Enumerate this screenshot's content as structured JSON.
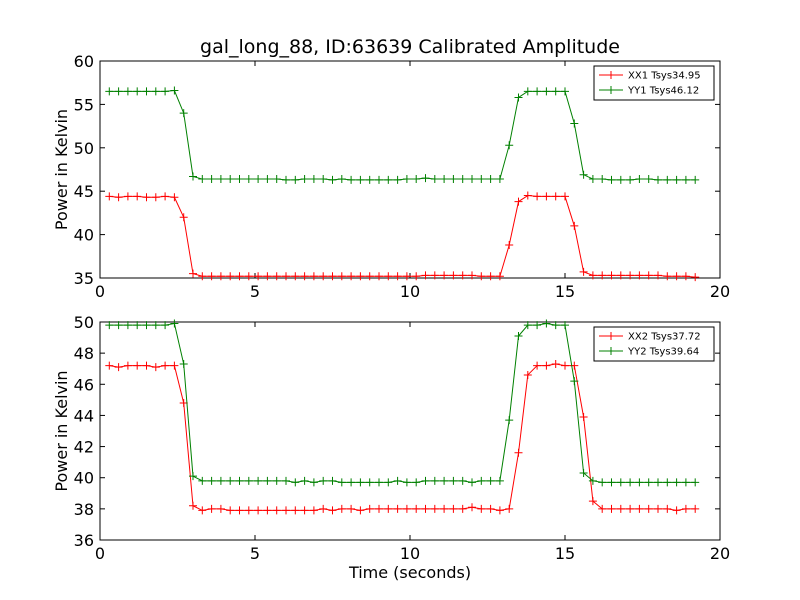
{
  "title": "gal_long_88, ID:63639 Calibrated Amplitude",
  "chart_data": [
    {
      "type": "line",
      "xlabel": "",
      "ylabel": "Power in Kelvin",
      "xlim": [
        0,
        20
      ],
      "ylim": [
        35,
        60
      ],
      "xticks": [
        0,
        5,
        10,
        15,
        20
      ],
      "yticks": [
        35,
        40,
        45,
        50,
        55,
        60
      ],
      "grid": false,
      "legend_position": "top-right",
      "x": [
        0.3,
        0.6,
        0.9,
        1.2,
        1.5,
        1.8,
        2.1,
        2.4,
        2.7,
        3.0,
        3.3,
        3.6,
        3.9,
        4.2,
        4.5,
        4.8,
        5.1,
        5.4,
        5.7,
        6.0,
        6.3,
        6.6,
        6.9,
        7.2,
        7.5,
        7.8,
        8.1,
        8.4,
        8.7,
        9.0,
        9.3,
        9.6,
        9.9,
        10.2,
        10.5,
        10.8,
        11.1,
        11.4,
        11.7,
        12.0,
        12.3,
        12.6,
        12.9,
        13.2,
        13.5,
        13.8,
        14.1,
        14.4,
        14.7,
        15.0,
        15.3,
        15.6,
        15.9,
        16.2,
        16.5,
        16.8,
        17.1,
        17.4,
        17.7,
        18.0,
        18.3,
        18.6,
        18.9,
        19.2
      ],
      "series": [
        {
          "name": "XX1 Tsys34.95",
          "color": "#ff0000",
          "values": [
            44.4,
            44.3,
            44.4,
            44.4,
            44.3,
            44.3,
            44.4,
            44.3,
            42.0,
            35.5,
            35.2,
            35.2,
            35.2,
            35.2,
            35.2,
            35.2,
            35.2,
            35.2,
            35.2,
            35.2,
            35.2,
            35.2,
            35.2,
            35.2,
            35.2,
            35.2,
            35.2,
            35.2,
            35.2,
            35.2,
            35.2,
            35.2,
            35.2,
            35.2,
            35.3,
            35.3,
            35.3,
            35.3,
            35.3,
            35.3,
            35.2,
            35.2,
            35.2,
            38.8,
            43.8,
            44.5,
            44.4,
            44.4,
            44.4,
            44.4,
            41.0,
            35.7,
            35.3,
            35.3,
            35.3,
            35.3,
            35.3,
            35.3,
            35.3,
            35.3,
            35.2,
            35.2,
            35.2,
            35.1
          ]
        },
        {
          "name": "YY1 Tsys46.12",
          "color": "#008000",
          "values": [
            56.5,
            56.5,
            56.5,
            56.5,
            56.5,
            56.5,
            56.5,
            56.6,
            54.0,
            46.7,
            46.4,
            46.4,
            46.4,
            46.4,
            46.4,
            46.4,
            46.4,
            46.4,
            46.4,
            46.3,
            46.3,
            46.4,
            46.4,
            46.4,
            46.3,
            46.4,
            46.3,
            46.3,
            46.3,
            46.3,
            46.3,
            46.3,
            46.4,
            46.4,
            46.5,
            46.4,
            46.4,
            46.4,
            46.4,
            46.4,
            46.4,
            46.4,
            46.4,
            50.3,
            55.8,
            56.5,
            56.5,
            56.5,
            56.5,
            56.5,
            52.8,
            46.9,
            46.4,
            46.4,
            46.3,
            46.3,
            46.3,
            46.4,
            46.4,
            46.3,
            46.3,
            46.3,
            46.3,
            46.3
          ]
        }
      ]
    },
    {
      "type": "line",
      "xlabel": "Time (seconds)",
      "ylabel": "Power in Kelvin",
      "xlim": [
        0,
        20
      ],
      "ylim": [
        36,
        50
      ],
      "xticks": [
        0,
        5,
        10,
        15,
        20
      ],
      "yticks": [
        36,
        38,
        40,
        42,
        44,
        46,
        48,
        50
      ],
      "grid": false,
      "legend_position": "top-right",
      "x": [
        0.3,
        0.6,
        0.9,
        1.2,
        1.5,
        1.8,
        2.1,
        2.4,
        2.7,
        3.0,
        3.3,
        3.6,
        3.9,
        4.2,
        4.5,
        4.8,
        5.1,
        5.4,
        5.7,
        6.0,
        6.3,
        6.6,
        6.9,
        7.2,
        7.5,
        7.8,
        8.1,
        8.4,
        8.7,
        9.0,
        9.3,
        9.6,
        9.9,
        10.2,
        10.5,
        10.8,
        11.1,
        11.4,
        11.7,
        12.0,
        12.3,
        12.6,
        12.9,
        13.2,
        13.5,
        13.8,
        14.1,
        14.4,
        14.7,
        15.0,
        15.3,
        15.6,
        15.9,
        16.2,
        16.5,
        16.8,
        17.1,
        17.4,
        17.7,
        18.0,
        18.3,
        18.6,
        18.9,
        19.2
      ],
      "series": [
        {
          "name": "XX2 Tsys37.72",
          "color": "#ff0000",
          "values": [
            47.2,
            47.1,
            47.2,
            47.2,
            47.2,
            47.1,
            47.2,
            47.2,
            44.8,
            38.2,
            37.9,
            38.0,
            38.0,
            37.9,
            37.9,
            37.9,
            37.9,
            37.9,
            37.9,
            37.9,
            37.9,
            37.9,
            37.9,
            38.0,
            37.9,
            38.0,
            38.0,
            37.9,
            38.0,
            38.0,
            38.0,
            38.0,
            38.0,
            38.0,
            38.0,
            38.0,
            38.0,
            38.0,
            38.0,
            38.1,
            38.0,
            38.0,
            37.9,
            38.0,
            41.6,
            46.6,
            47.2,
            47.2,
            47.3,
            47.2,
            47.2,
            43.9,
            38.5,
            38.0,
            38.0,
            38.0,
            38.0,
            38.0,
            38.0,
            38.0,
            38.0,
            37.9,
            38.0,
            38.0
          ]
        },
        {
          "name": "YY2 Tsys39.64",
          "color": "#008000",
          "values": [
            49.8,
            49.8,
            49.8,
            49.8,
            49.8,
            49.8,
            49.8,
            49.9,
            47.3,
            40.1,
            39.8,
            39.8,
            39.8,
            39.8,
            39.8,
            39.8,
            39.8,
            39.8,
            39.8,
            39.8,
            39.7,
            39.8,
            39.7,
            39.8,
            39.8,
            39.7,
            39.7,
            39.7,
            39.7,
            39.7,
            39.7,
            39.8,
            39.7,
            39.7,
            39.8,
            39.8,
            39.8,
            39.8,
            39.8,
            39.7,
            39.8,
            39.8,
            39.8,
            43.7,
            49.1,
            49.8,
            49.8,
            49.9,
            49.8,
            49.8,
            46.2,
            40.3,
            39.8,
            39.7,
            39.7,
            39.7,
            39.7,
            39.7,
            39.7,
            39.7,
            39.7,
            39.7,
            39.7,
            39.7
          ]
        }
      ]
    }
  ]
}
